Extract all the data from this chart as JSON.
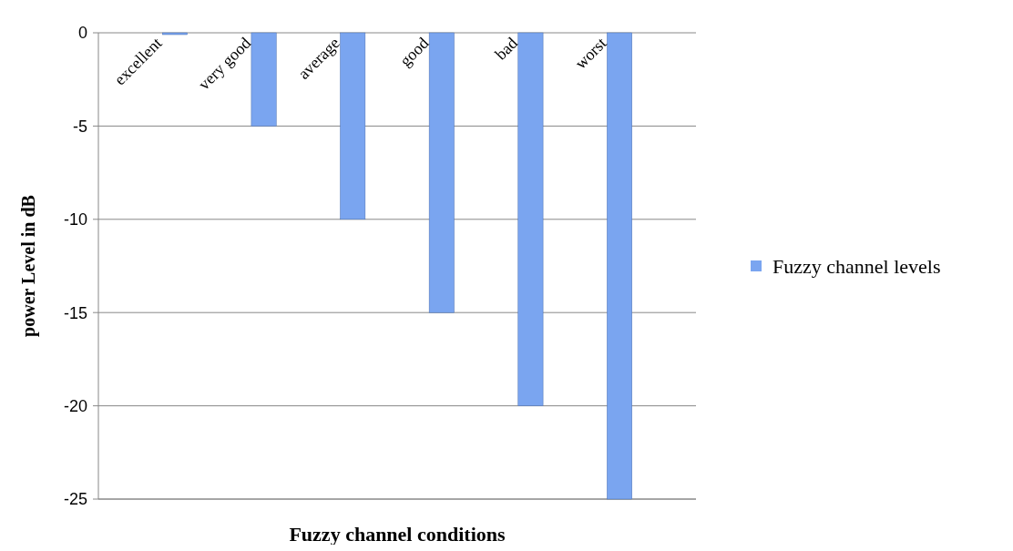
{
  "chart_data": {
    "type": "bar",
    "xlabel": "Fuzzy channel conditions",
    "ylabel": "power Level in dB",
    "categories": [
      "excellent",
      "very good",
      "average",
      "good",
      "bad",
      "worst"
    ],
    "series": [
      {
        "name": "Fuzzy channel levels",
        "color": "#7aa5f0",
        "values": [
          0,
          -5,
          -10,
          -15,
          -20,
          -25
        ]
      }
    ],
    "ylim": [
      -25,
      0
    ],
    "yticks": [
      0,
      -5,
      -10,
      -15,
      -20,
      -25
    ],
    "grid": "y",
    "legend": "right"
  }
}
